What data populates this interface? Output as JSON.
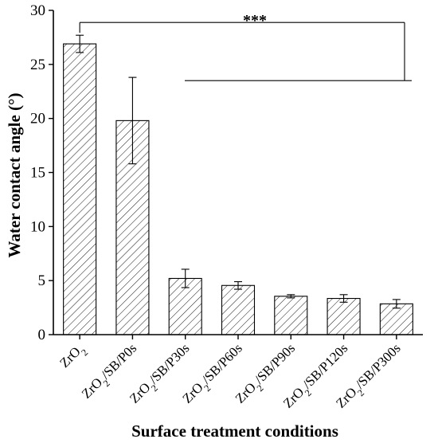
{
  "chart_data": {
    "type": "bar",
    "categories": [
      {
        "base": "ZrO",
        "sub": "2",
        "rest": ""
      },
      {
        "base": "ZrO",
        "sub": "2",
        "rest": "/SB/P0s"
      },
      {
        "base": "ZrO",
        "sub": "2",
        "rest": "/SB/P30s"
      },
      {
        "base": "ZrO",
        "sub": "2",
        "rest": "/SB/P60s"
      },
      {
        "base": "ZrO",
        "sub": "2",
        "rest": "/SB/P90s"
      },
      {
        "base": "ZrO",
        "sub": "2",
        "rest": "/SB/P120s"
      },
      {
        "base": "ZrO",
        "sub": "2",
        "rest": "/SB/P300s"
      }
    ],
    "values": [
      26.9,
      19.8,
      5.2,
      4.55,
      3.55,
      3.35,
      2.85
    ],
    "errors": [
      0.8,
      4.0,
      0.85,
      0.35,
      0.15,
      0.35,
      0.4
    ],
    "xlabel": "Surface treatment conditions",
    "ylabel": "Water contact angle (°)",
    "ylim": [
      0,
      30
    ],
    "yticks": [
      0,
      5,
      10,
      15,
      20,
      25,
      30
    ],
    "bar_pattern": "diagonal-hatch",
    "significance": {
      "label": "***",
      "from_category": 0,
      "to_level": 23.5
    }
  }
}
